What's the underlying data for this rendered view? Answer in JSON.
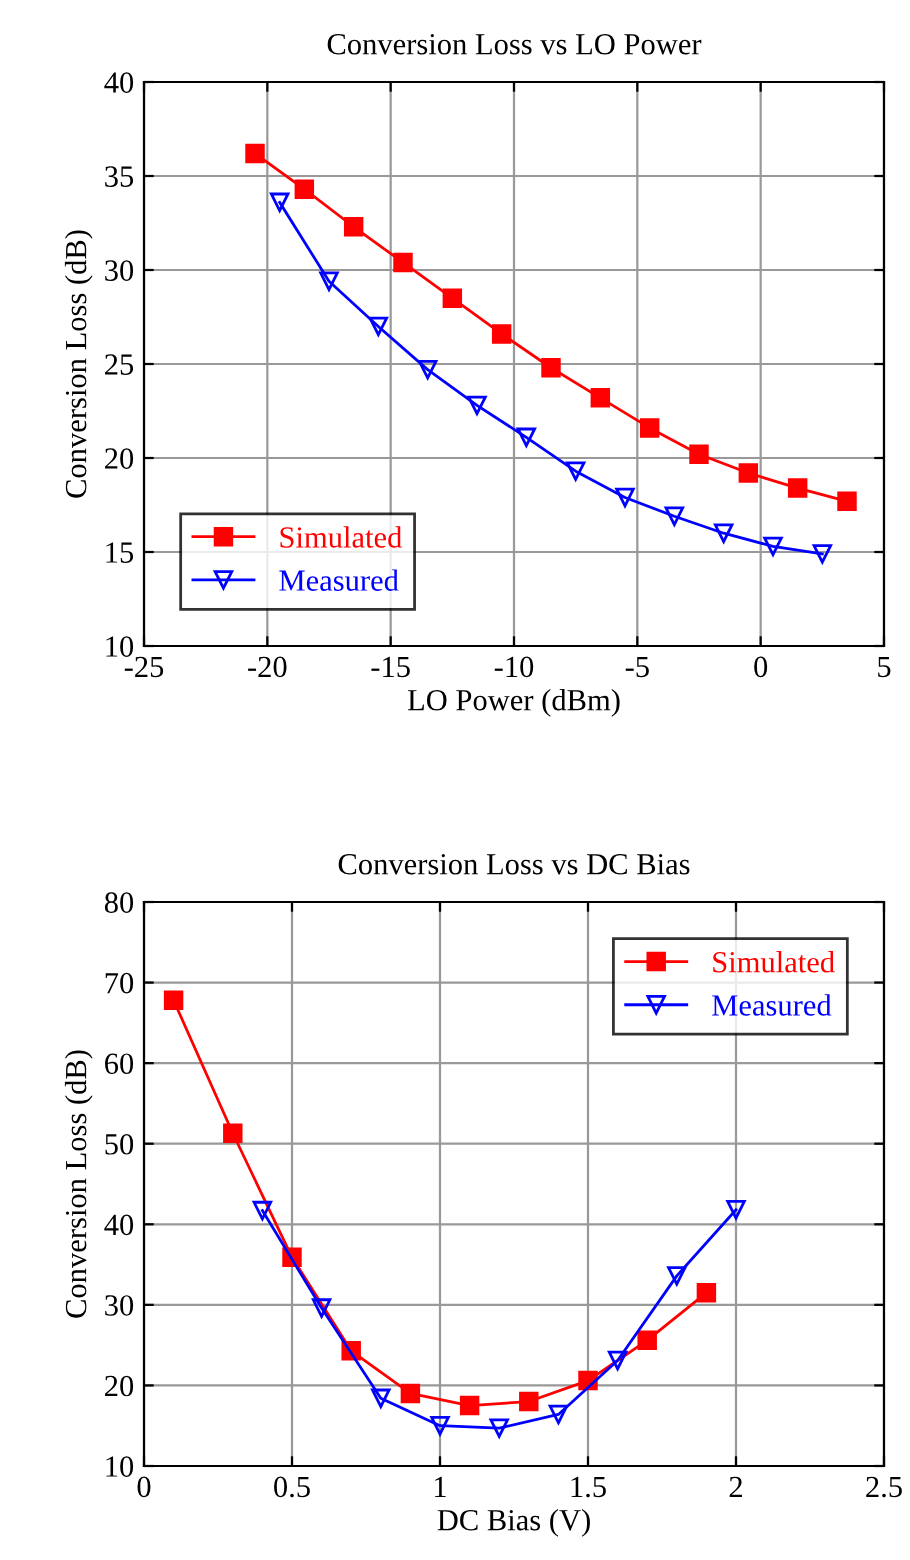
{
  "chart_data": [
    {
      "type": "line",
      "title": "Conversion Loss vs LO Power",
      "xlabel": "LO Power (dBm)",
      "ylabel": "Conversion Loss (dB)",
      "xlim": [
        -25,
        5
      ],
      "xticks": [
        -25,
        -20,
        -15,
        -10,
        -5,
        0,
        5
      ],
      "ylim": [
        10,
        40
      ],
      "yticks": [
        10,
        15,
        20,
        25,
        30,
        35,
        40
      ],
      "grid": true,
      "legend": "bottom left",
      "series": [
        {
          "name": "Simulated",
          "color": "#ff0000",
          "marker": "square",
          "x": [
            -20.5,
            -18.5,
            -16.5,
            -14.5,
            -12.5,
            -10.5,
            -8.5,
            -6.5,
            -4.5,
            -2.5,
            -0.5,
            1.5,
            3.5
          ],
          "values": [
            36.2,
            34.3,
            32.3,
            30.4,
            28.5,
            26.6,
            24.8,
            23.2,
            21.6,
            20.2,
            19.2,
            18.4,
            17.7
          ]
        },
        {
          "name": "Measured",
          "color": "#0000ff",
          "marker": "triangle",
          "x": [
            -19.5,
            -17.5,
            -15.5,
            -13.5,
            -11.5,
            -9.5,
            -7.5,
            -5.5,
            -3.5,
            -1.5,
            0.5,
            2.5
          ],
          "values": [
            33.6,
            29.4,
            27.0,
            24.7,
            22.8,
            21.1,
            19.3,
            17.9,
            16.9,
            16.0,
            15.3,
            14.9
          ]
        }
      ]
    },
    {
      "type": "line",
      "title": "Conversion Loss vs DC Bias",
      "xlabel": "DC Bias (V)",
      "ylabel": "Conversion Loss (dB)",
      "xlim": [
        0,
        2.5
      ],
      "xticks": [
        0,
        0.5,
        1,
        1.5,
        2,
        2.5
      ],
      "ylim": [
        10,
        80
      ],
      "yticks": [
        10,
        20,
        30,
        40,
        50,
        60,
        70,
        80
      ],
      "grid": true,
      "legend": "top right",
      "series": [
        {
          "name": "Simulated",
          "color": "#ff0000",
          "marker": "square",
          "x": [
            0.1,
            0.3,
            0.5,
            0.7,
            0.9,
            1.1,
            1.3,
            1.5,
            1.7,
            1.9
          ],
          "values": [
            67.8,
            51.3,
            35.9,
            24.3,
            19.0,
            17.5,
            18.0,
            20.6,
            25.6,
            31.5
          ]
        },
        {
          "name": "Measured",
          "color": "#0000ff",
          "marker": "triangle",
          "x": [
            0.4,
            0.6,
            0.8,
            1.0,
            1.2,
            1.4,
            1.6,
            1.8,
            2.0
          ],
          "values": [
            41.7,
            29.6,
            18.4,
            15.0,
            14.7,
            16.4,
            23.1,
            33.6,
            41.8
          ]
        }
      ]
    }
  ]
}
